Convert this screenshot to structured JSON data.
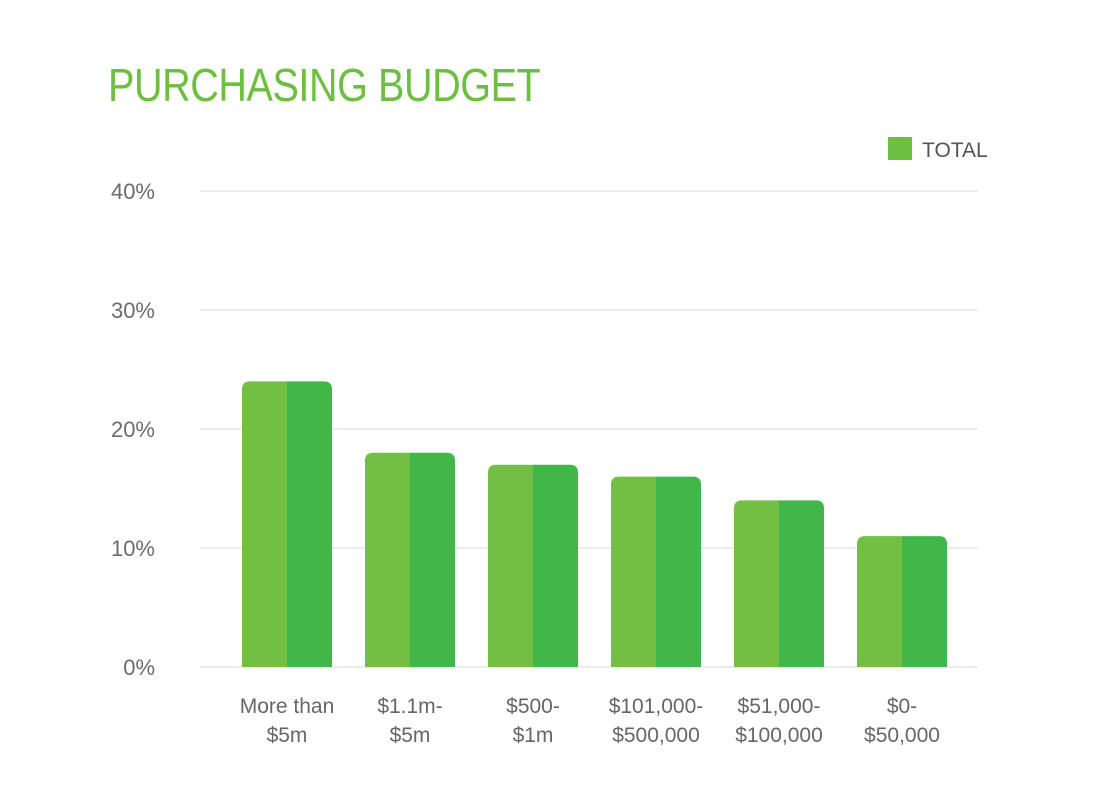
{
  "chart_data": {
    "type": "bar",
    "title": "PURCHASING BUDGET",
    "categories": [
      [
        "More than",
        "$5m"
      ],
      [
        "$1.1m-",
        "$5m"
      ],
      [
        "$500-",
        "$1m"
      ],
      [
        "$101,000-",
        "$500,000"
      ],
      [
        "$51,000-",
        "$100,000"
      ],
      [
        "$0-",
        "$50,000"
      ]
    ],
    "series": [
      {
        "name": "TOTAL",
        "values": [
          24,
          18,
          17,
          16,
          14,
          11
        ]
      }
    ],
    "yticks": [
      "0%",
      "10%",
      "20%",
      "30%",
      "40%"
    ],
    "ylim": [
      0,
      40
    ],
    "xlabel": "",
    "ylabel": "",
    "grid": true,
    "legend_position": "top-right"
  },
  "colors": {
    "title": "#6cbf3f",
    "bar_left": "#72bf44",
    "bar_right": "#42b749",
    "legend_swatch": "#6cbf3f",
    "grid": "#e6e6e6"
  }
}
